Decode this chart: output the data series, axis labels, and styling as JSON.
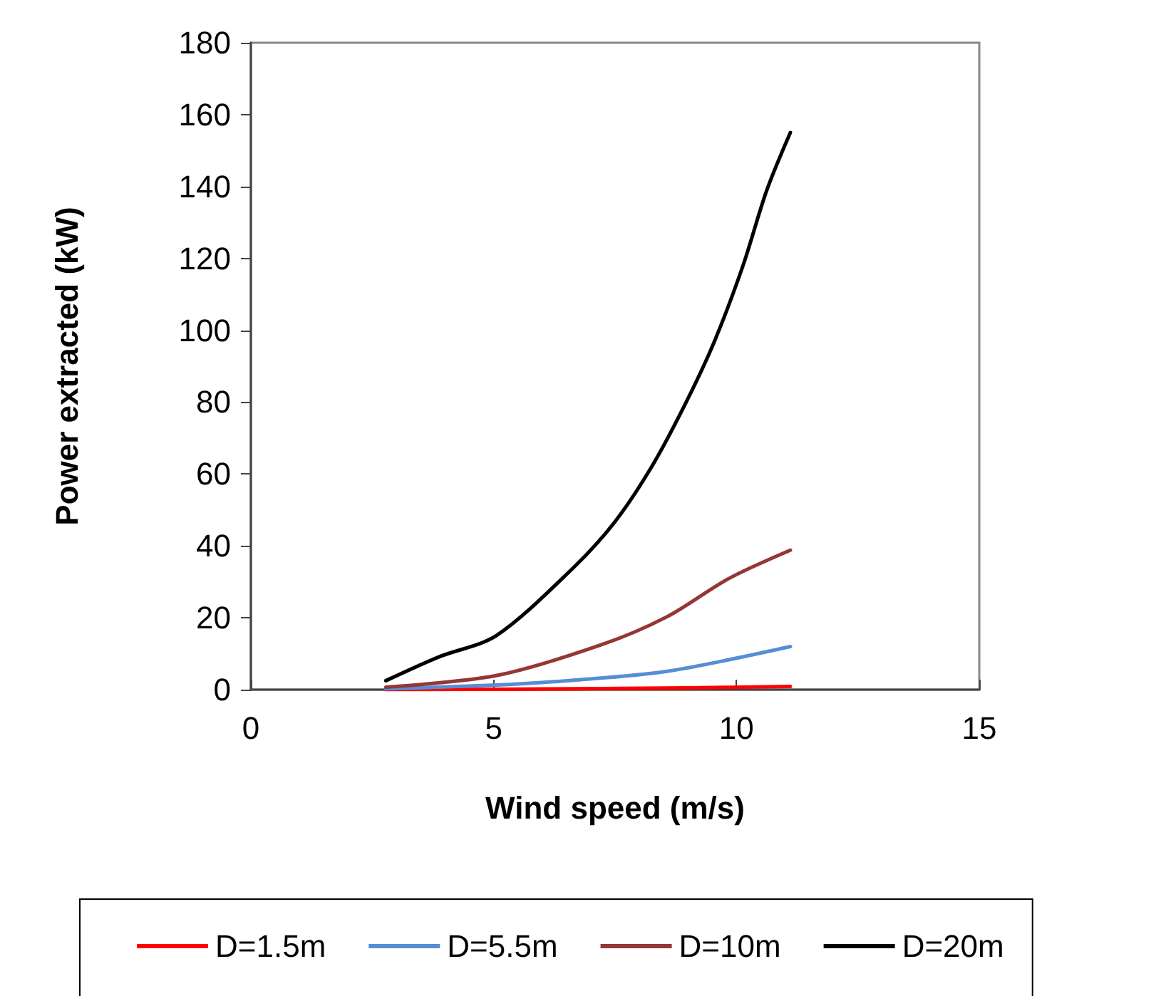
{
  "chart_data": {
    "type": "line",
    "xlabel": "Wind speed (m/s)",
    "ylabel": "Power extracted (kW)",
    "xlim": [
      0,
      15
    ],
    "xticks": [
      0,
      5,
      10,
      15
    ],
    "ylim": [
      0,
      180
    ],
    "yticks": [
      0,
      20,
      40,
      60,
      80,
      100,
      120,
      140,
      160,
      180
    ],
    "grid": false,
    "legend": "bottom",
    "marker": "none",
    "line_style": "solid",
    "series": [
      {
        "name": "D=1.5m",
        "color": "#ff0000",
        "x": [
          2.78,
          5.05,
          7.2,
          9.0,
          11.11
        ],
        "values": [
          0,
          0.1,
          0.3,
          0.5,
          0.9
        ]
      },
      {
        "name": "D=5.5m",
        "color": "#558ed5",
        "x": [
          2.78,
          5.05,
          6.61,
          8.57,
          11.11
        ],
        "values": [
          0.2,
          1.3,
          2.6,
          5.1,
          12.0
        ]
      },
      {
        "name": "D=10m",
        "color": "#953735",
        "x": [
          2.78,
          5.05,
          7.2,
          8.57,
          9.84,
          11.11
        ],
        "values": [
          0.7,
          3.9,
          12.4,
          20.3,
          30.9,
          38.8
        ]
      },
      {
        "name": "D=20m",
        "color": "#000000",
        "x": [
          2.78,
          3.87,
          5.05,
          6.61,
          7.49,
          8.27,
          8.95,
          9.54,
          10.13,
          10.62,
          11.11
        ],
        "values": [
          2.5,
          9.1,
          15.0,
          33.5,
          46.6,
          62.4,
          79.6,
          96.7,
          117.8,
          138.8,
          155
        ]
      }
    ]
  }
}
